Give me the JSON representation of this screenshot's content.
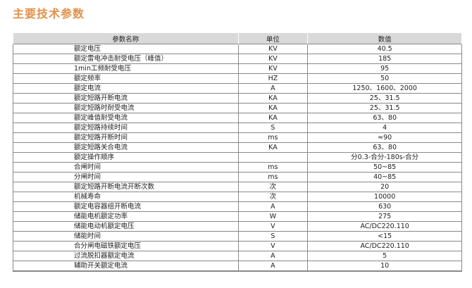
{
  "title": "主要技术参数",
  "colors": {
    "title": "#e3914a",
    "header_bg": "#d9d9d9",
    "border": "#888888"
  },
  "table": {
    "headers": [
      "参数名称",
      "单位",
      "数值"
    ],
    "rows": [
      [
        "额定电压",
        "KV",
        "40.5"
      ],
      [
        "额定雷电冲击耐受电压（峰值）",
        "KV",
        "185"
      ],
      [
        "1min工频耐受电压",
        "KV",
        "95"
      ],
      [
        "额定频率",
        "HZ",
        "50"
      ],
      [
        "额定电流",
        "A",
        "1250、1600、2000"
      ],
      [
        "额定短路开断电流",
        "KA",
        "25、31.5"
      ],
      [
        "额定短路时耐受电流",
        "KA",
        "25、31.5"
      ],
      [
        "额定峰值耐受电流",
        "KA",
        "63、80"
      ],
      [
        "额定短路持续时间",
        "S",
        "4"
      ],
      [
        "额定短路开断时间",
        "ms",
        "≈90"
      ],
      [
        "额定短路关合电流",
        "KA",
        "63、80"
      ],
      [
        "额定操作顺序",
        "",
        "分0.3-合分-180s-合分"
      ],
      [
        "合闸时间",
        "ms",
        "50~85"
      ],
      [
        "分闸时间",
        "ms",
        "40~85"
      ],
      [
        "额定短路开断电流开断次数",
        "次",
        "20"
      ],
      [
        "机械寿命",
        "次",
        "10000"
      ],
      [
        "额定电容器组开断电流",
        "A",
        "630"
      ],
      [
        "储能电机额定功率",
        "W",
        "275"
      ],
      [
        "储能电动机额定电压",
        "V",
        "AC/DC220.110"
      ],
      [
        "储能时间",
        "S",
        "<15"
      ],
      [
        "合分闸电磁铁额定电压",
        "V",
        "AC/DC220.110"
      ],
      [
        "过流脱扣器额定电流",
        "A",
        "5"
      ],
      [
        "辅助开关额定电流",
        "A",
        "10"
      ]
    ]
  }
}
